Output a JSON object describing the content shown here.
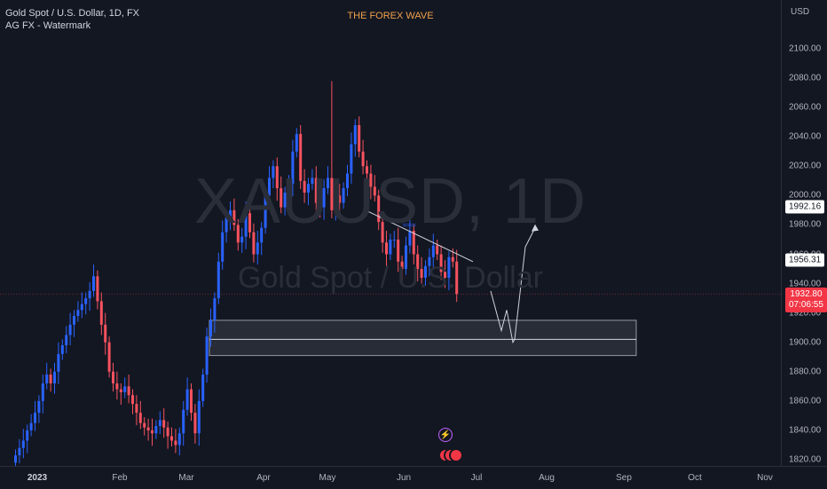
{
  "legend": {
    "symbol_line": "Gold Spot / U.S. Dollar, 1D, FX",
    "indicator_line": "AG FX - Watermark"
  },
  "brand": {
    "text": "THE FOREX WAVE",
    "color": "#f0a04b"
  },
  "watermark": {
    "symbol": "XAUUSD, 1D",
    "description": "Gold Spot / U.S. Dollar"
  },
  "price_axis": {
    "currency": "USD",
    "ticks": [
      "2100.00",
      "2080.00",
      "2060.00",
      "2040.00",
      "2020.00",
      "2000.00",
      "1980.00",
      "1960.00",
      "1940.00",
      "1920.00",
      "1900.00",
      "1880.00",
      "1860.00",
      "1840.00",
      "1820.00"
    ],
    "labels": {
      "upper": "1992.16",
      "middle": "1956.31",
      "current_price": "1932.80",
      "countdown": "07:06:55"
    }
  },
  "time_axis": {
    "ticks": [
      {
        "label": "2023",
        "bold": true
      },
      {
        "label": "Feb",
        "bold": false
      },
      {
        "label": "Mar",
        "bold": false
      },
      {
        "label": "Apr",
        "bold": false
      },
      {
        "label": "May",
        "bold": false
      },
      {
        "label": "Jun",
        "bold": false
      },
      {
        "label": "Jul",
        "bold": false
      },
      {
        "label": "Aug",
        "bold": false
      },
      {
        "label": "Sep",
        "bold": false
      },
      {
        "label": "Oct",
        "bold": false
      },
      {
        "label": "Nov",
        "bold": false
      }
    ]
  },
  "events": {
    "flash_icon": "lightning-icon",
    "flag_icon": "us-flag-icon"
  },
  "colors": {
    "up": "#2962ff",
    "down": "#f7525f",
    "background": "#131722",
    "zone": "#434651"
  },
  "chart_data": {
    "type": "candlestick",
    "symbol": "XAUUSD",
    "interval": "1D",
    "price_range": [
      1815,
      2110
    ],
    "closes": [
      1823,
      1828,
      1833,
      1840,
      1845,
      1852,
      1860,
      1872,
      1878,
      1872,
      1880,
      1892,
      1898,
      1905,
      1912,
      1918,
      1922,
      1926,
      1930,
      1935,
      1945,
      1928,
      1912,
      1900,
      1880,
      1872,
      1868,
      1866,
      1870,
      1864,
      1858,
      1852,
      1845,
      1842,
      1840,
      1838,
      1843,
      1847,
      1842,
      1836,
      1833,
      1830,
      1838,
      1854,
      1868,
      1852,
      1838,
      1860,
      1878,
      1904,
      1915,
      1930,
      1955,
      1975,
      1985,
      1990,
      1980,
      1968,
      1972,
      1988,
      1975,
      1960,
      1968,
      1978,
      2000,
      2012,
      2020,
      2005,
      1992,
      2002,
      2008,
      2030,
      2042,
      2010,
      2002,
      2008,
      2012,
      1995,
      1992,
      2005,
      2012,
      1990,
      2000,
      1995,
      2005,
      2015,
      2035,
      2048,
      2030,
      2020,
      2015,
      2006,
      2000,
      1982,
      1968,
      1960,
      1970,
      1970,
      1955,
      1950,
      1966,
      1976,
      1960,
      1950,
      1944,
      1952,
      1958,
      1966,
      1960,
      1948,
      1944,
      1958,
      1955,
      1933
    ]
  },
  "drawings": {
    "zone": {
      "top": 1915,
      "mid": 1902,
      "bottom": 1891
    },
    "trendline": {
      "from": 1990,
      "to": 1955
    },
    "projection": [
      1935,
      1908,
      1922,
      1900,
      1902,
      1965,
      1978
    ]
  }
}
